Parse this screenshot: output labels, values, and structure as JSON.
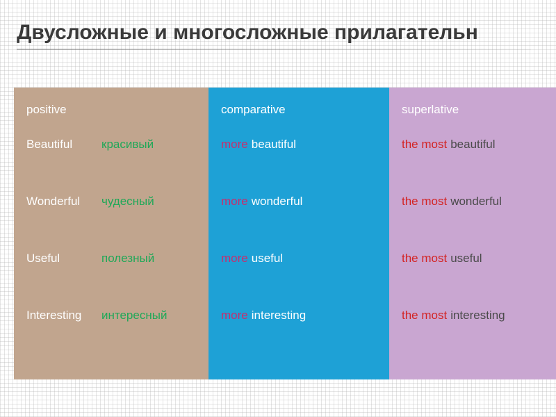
{
  "title": "Двусложные и многосложные прилагательн",
  "columns": {
    "positive": {
      "label": "positive",
      "bg": "#c1a58e",
      "ru_color": "#1fa858"
    },
    "comparative": {
      "label": "comparative",
      "bg": "#1ea1d6",
      "more_color": "#c52f6f"
    },
    "superlative": {
      "label": "superlative",
      "bg": "#c9a6d1",
      "the_color": "#d32424",
      "word_color": "#4a4a4a"
    }
  },
  "rows": [
    {
      "word": "Beautiful",
      "ru": "красивый",
      "comp": "beautiful",
      "sup": "beautiful"
    },
    {
      "word": "Wonderful",
      "ru": "чудесный",
      "comp": "wonderful",
      "sup": "wonderful"
    },
    {
      "word": "Useful",
      "ru": "полезный",
      "comp": "useful",
      "sup": "useful"
    },
    {
      "word": "Interesting",
      "ru": "интересный",
      "comp": "interesting",
      "sup": "interesting"
    }
  ],
  "prefixes": {
    "comparative": "more",
    "superlative": "the most"
  }
}
